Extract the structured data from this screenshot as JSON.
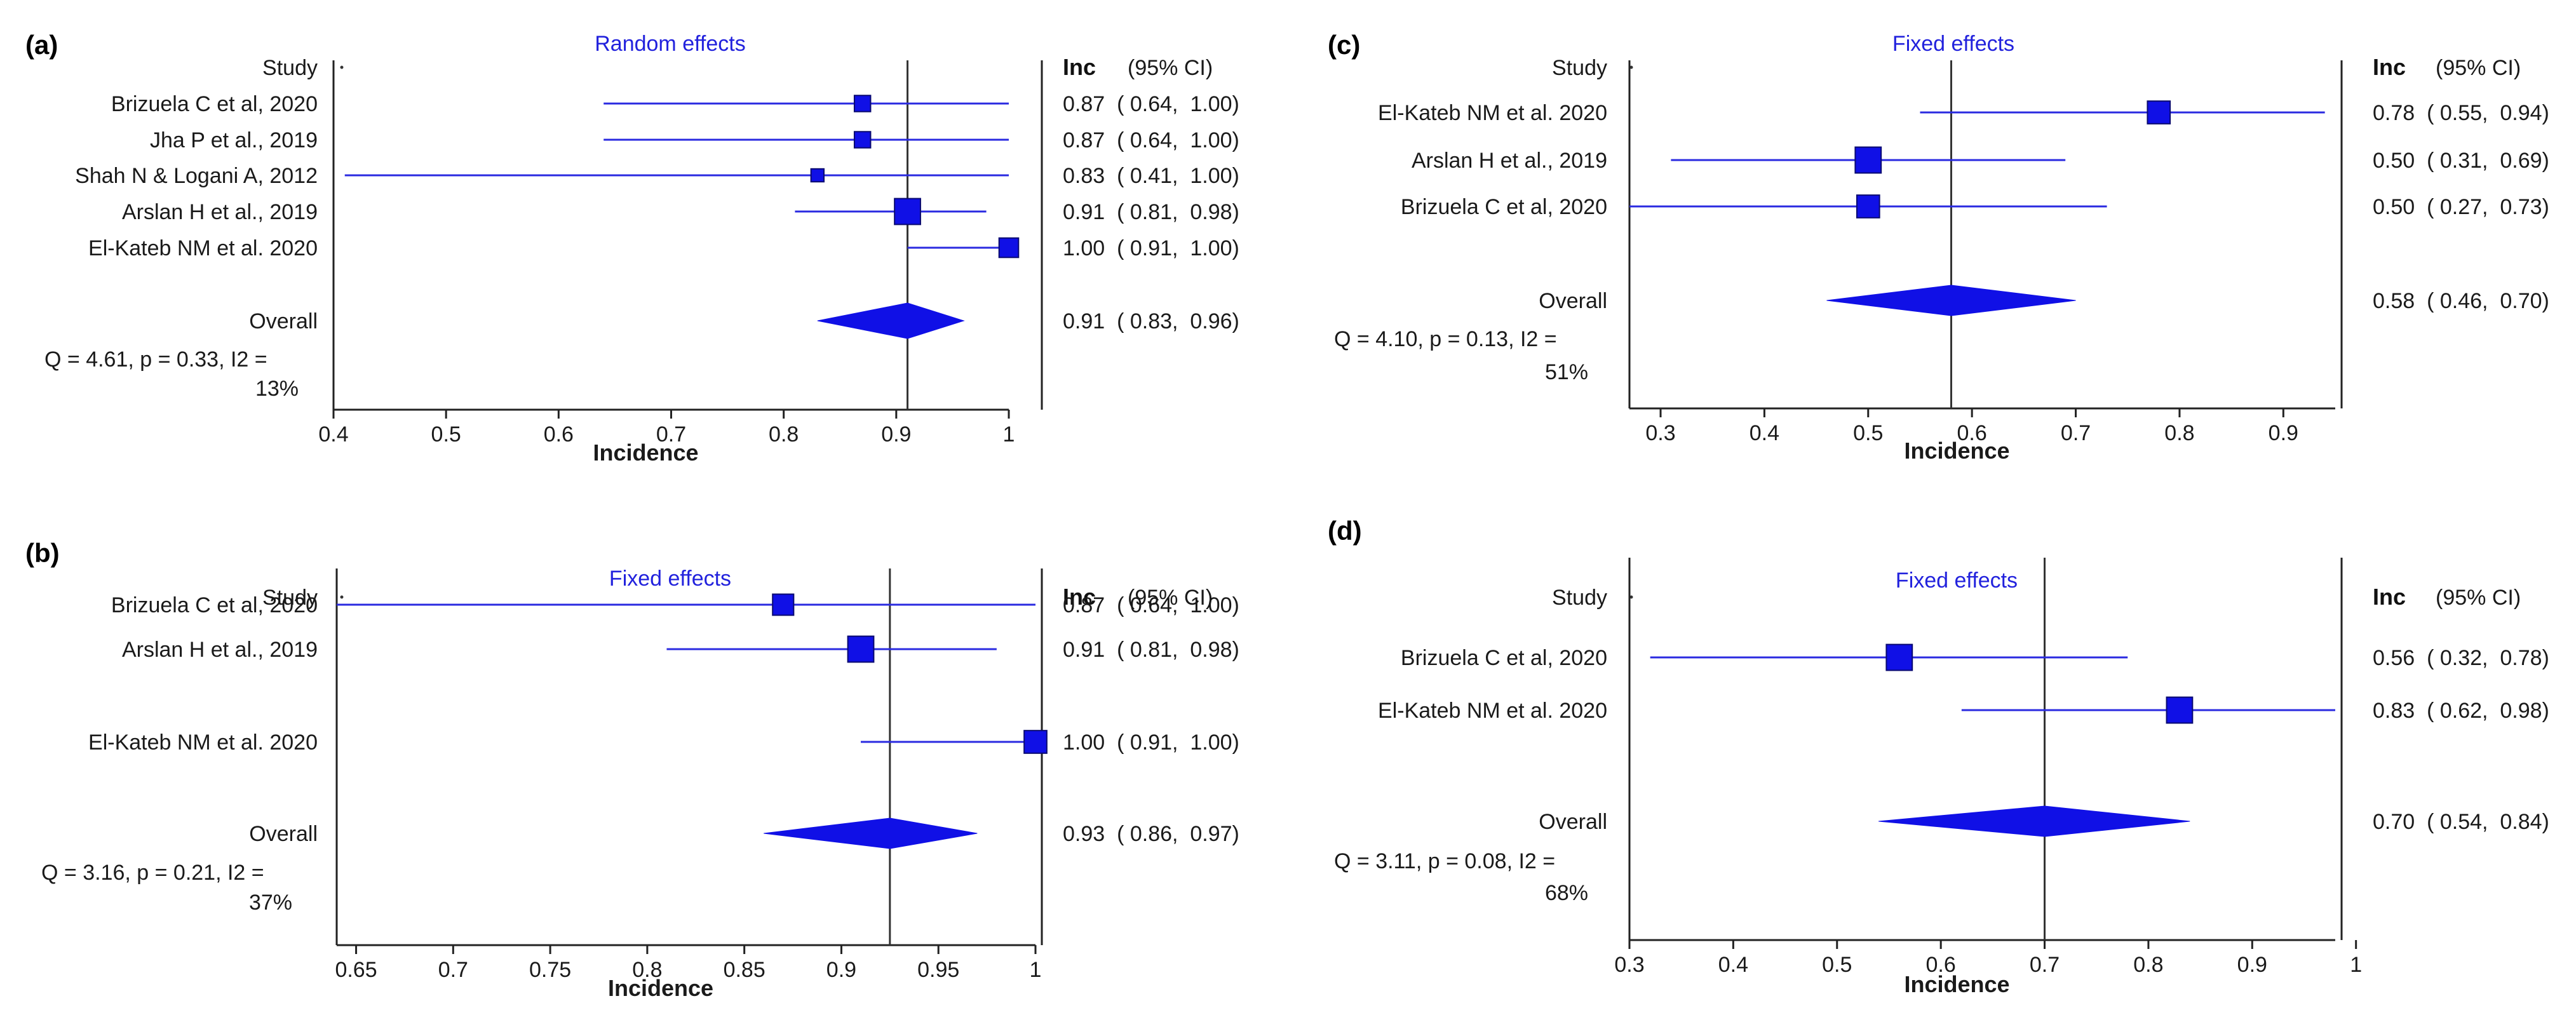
{
  "figure": {
    "colors": {
      "marker": "#1010e6",
      "ci_line": "#2a2ae0",
      "title": "#2222dd",
      "axis": "#222222",
      "text": "#1a1a1a"
    }
  },
  "chart_data": [
    {
      "type": "forest",
      "panel": "(a)",
      "title": "Random effects",
      "column_header": "Study",
      "value_header": "Inc",
      "ci_header": "(95% CI)",
      "xlabel": "Incidence",
      "xlim": [
        0.4,
        1.0
      ],
      "xticks": [
        0.4,
        0.5,
        0.6,
        0.7,
        0.8,
        0.9,
        1.0
      ],
      "xtick_labels": [
        "0.4",
        "0.5",
        "0.6",
        "0.7",
        "0.8",
        "0.9",
        "1"
      ],
      "studies": [
        {
          "name": "Brizuela C et al, 2020",
          "estimate": 0.87,
          "lower": 0.64,
          "upper": 1.0,
          "ci_text": "0.87  ( 0.64,  1.00)",
          "weight": 1.0
        },
        {
          "name": "Jha P et al., 2019",
          "estimate": 0.87,
          "lower": 0.64,
          "upper": 1.0,
          "ci_text": "0.87  ( 0.64,  1.00)",
          "weight": 1.0
        },
        {
          "name": "Shah N & Logani A, 2012",
          "estimate": 0.83,
          "lower": 0.41,
          "upper": 1.0,
          "ci_text": "0.83  ( 0.41,  1.00)",
          "weight": 0.8
        },
        {
          "name": "Arslan H et al., 2019",
          "estimate": 0.91,
          "lower": 0.81,
          "upper": 0.98,
          "ci_text": "0.91  ( 0.81,  0.98)",
          "weight": 1.7
        },
        {
          "name": "El-Kateb NM et al. 2020",
          "estimate": 1.0,
          "lower": 0.91,
          "upper": 1.0,
          "ci_text": "1.00  ( 0.91,  1.00)",
          "weight": 1.2
        }
      ],
      "overall": {
        "label": "Overall",
        "estimate": 0.91,
        "lower": 0.83,
        "upper": 0.96,
        "ci_text": "0.91  ( 0.83,  0.96)"
      },
      "heterogeneity": [
        "Q = 4.61, p = 0.33, I2 =",
        "13%"
      ]
    },
    {
      "type": "forest",
      "panel": "(b)",
      "title": "Fixed effects",
      "column_header": "Study",
      "value_header": "Inc",
      "ci_header": "(95% CI)",
      "xlabel": "Incidence",
      "xlim": [
        0.64,
        1.0
      ],
      "xticks": [
        0.65,
        0.7,
        0.75,
        0.8,
        0.85,
        0.9,
        0.95,
        1.0
      ],
      "xtick_labels": [
        "0.65",
        "0.7",
        "0.75",
        "0.8",
        "0.85",
        "0.9",
        "0.95",
        "1"
      ],
      "studies": [
        {
          "name": "Brizuela C et al, 2020",
          "estimate": 0.87,
          "lower": 0.64,
          "upper": 1.0,
          "ci_text": "0.87  ( 0.64,  1.00)",
          "weight": 1.3
        },
        {
          "name": "Arslan H et al., 2019",
          "estimate": 0.91,
          "lower": 0.81,
          "upper": 0.98,
          "ci_text": "0.91  ( 0.81,  0.98)",
          "weight": 2.0
        },
        {
          "name": "El-Kateb NM et al. 2020",
          "estimate": 1.0,
          "lower": 0.91,
          "upper": 1.0,
          "ci_text": "1.00  ( 0.91,  1.00)",
          "weight": 1.4
        }
      ],
      "overall": {
        "label": "Overall",
        "estimate": 0.925,
        "lower": 0.86,
        "upper": 0.97,
        "ci_text": "0.93  ( 0.86,  0.97)"
      },
      "heterogeneity": [
        "Q = 3.16, p = 0.21, I2 =",
        "37%"
      ]
    },
    {
      "type": "forest",
      "panel": "(c)",
      "title": "Fixed effects",
      "column_header": "Study",
      "value_header": "Inc",
      "ci_header": "(95% CI)",
      "xlabel": "Incidence",
      "xlim": [
        0.27,
        0.95
      ],
      "xticks": [
        0.3,
        0.4,
        0.5,
        0.6,
        0.7,
        0.8,
        0.9
      ],
      "xtick_labels": [
        "0.3",
        "0.4",
        "0.5",
        "0.6",
        "0.7",
        "0.8",
        "0.9"
      ],
      "studies": [
        {
          "name": "El-Kateb NM et al. 2020",
          "estimate": 0.78,
          "lower": 0.55,
          "upper": 0.94,
          "ci_text": "0.78  ( 0.55,  0.94)",
          "weight": 1.4
        },
        {
          "name": "Arslan H et al., 2019",
          "estimate": 0.5,
          "lower": 0.31,
          "upper": 0.69,
          "ci_text": "0.50  ( 0.31,  0.69)",
          "weight": 1.7
        },
        {
          "name": "Brizuela C et al, 2020",
          "estimate": 0.5,
          "lower": 0.27,
          "upper": 0.73,
          "ci_text": "0.50  ( 0.27,  0.73)",
          "weight": 1.4
        }
      ],
      "overall": {
        "label": "Overall",
        "estimate": 0.58,
        "lower": 0.46,
        "upper": 0.7,
        "ci_text": "0.58  ( 0.46,  0.70)"
      },
      "heterogeneity": [
        "Q = 4.10, p = 0.13, I2 =",
        "51%"
      ]
    },
    {
      "type": "forest",
      "panel": "(d)",
      "title": "Fixed effects",
      "column_header": "Study",
      "value_header": "Inc",
      "ci_header": "(95% CI)",
      "xlabel": "Incidence",
      "xlim": [
        0.3,
        0.98
      ],
      "xticks": [
        0.3,
        0.4,
        0.5,
        0.6,
        0.7,
        0.8,
        0.9,
        1.0
      ],
      "xtick_labels": [
        "0.3",
        "0.4",
        "0.5",
        "0.6",
        "0.7",
        "0.8",
        "0.9",
        "1"
      ],
      "studies": [
        {
          "name": "Brizuela C et al, 2020",
          "estimate": 0.56,
          "lower": 0.32,
          "upper": 0.78,
          "ci_text": "0.56  ( 0.32,  0.78)",
          "weight": 2.0
        },
        {
          "name": "El-Kateb NM et al. 2020",
          "estimate": 0.83,
          "lower": 0.62,
          "upper": 0.98,
          "ci_text": "0.83  ( 0.62,  0.98)",
          "weight": 2.1
        }
      ],
      "overall": {
        "label": "Overall",
        "estimate": 0.7,
        "lower": 0.54,
        "upper": 0.84,
        "ci_text": "0.70  ( 0.54,  0.84)"
      },
      "heterogeneity": [
        "Q = 3.11, p = 0.08, I2 =",
        "68%"
      ]
    }
  ]
}
